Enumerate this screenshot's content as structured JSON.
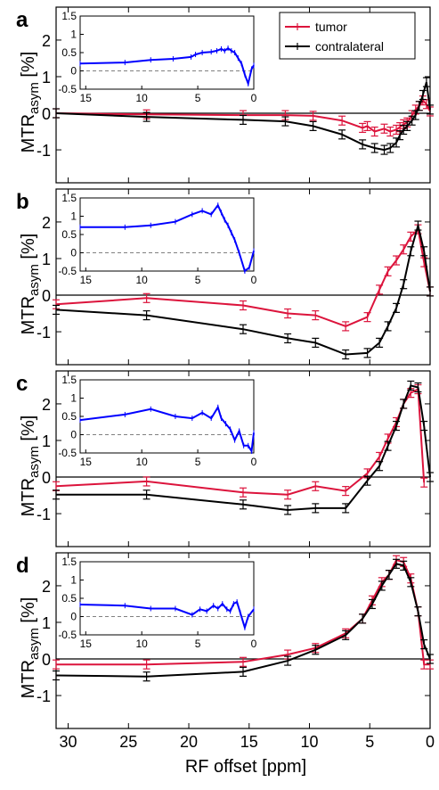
{
  "figure": {
    "xlabel": "RF offset [ppm]",
    "ylabel_main": "MTR",
    "ylabel_sub": "asym",
    "ylabel_unit": " [%]",
    "xticks": [
      "30",
      "25",
      "20",
      "15",
      "10",
      "5",
      "0"
    ],
    "legend": {
      "position": "top-right",
      "entries": [
        "tumor",
        "contralateral"
      ]
    },
    "colors": {
      "tumor": "#dc143c",
      "contralateral": "#000000",
      "inset": "#0000ff",
      "zero_line": "#000000",
      "inset_zero": "#808080"
    }
  },
  "chart_data": [
    {
      "panel": "a",
      "type": "line",
      "x_reversed": true,
      "xlim": [
        31,
        0
      ],
      "ylim": [
        -1.9,
        2.9
      ],
      "yticks": [
        "-1",
        "0",
        "1",
        "2"
      ],
      "series": [
        {
          "name": "tumor",
          "x": [
            31,
            23.5,
            15.5,
            12,
            9.7,
            7.3,
            5.6,
            5.2,
            4.6,
            3.8,
            3.3,
            2.8,
            2.5,
            2.2,
            1.9,
            1.5,
            1.2,
            0.9,
            0.6,
            0.3,
            0
          ],
          "y": [
            0,
            -0.03,
            -0.05,
            -0.05,
            -0.07,
            -0.2,
            -0.4,
            -0.35,
            -0.5,
            -0.42,
            -0.5,
            -0.45,
            -0.38,
            -0.3,
            -0.25,
            -0.05,
            0.1,
            0.2,
            0.35,
            0.25,
            0.05
          ]
        },
        {
          "name": "contralateral",
          "x": [
            31,
            23.5,
            15.5,
            12,
            9.7,
            7.3,
            5.6,
            4.6,
            3.8,
            3.3,
            2.8,
            2.5,
            2.2,
            1.9,
            1.5,
            1.2,
            0.9,
            0.6,
            0.3,
            0
          ],
          "y": [
            0,
            -0.1,
            -0.18,
            -0.22,
            -0.35,
            -0.58,
            -0.85,
            -0.95,
            -1.0,
            -0.95,
            -0.8,
            -0.6,
            -0.45,
            -0.35,
            -0.2,
            -0.05,
            0.2,
            0.5,
            0.85,
            0.1
          ]
        }
      ],
      "inset": {
        "xlim": [
          15.5,
          0
        ],
        "ylim": [
          -0.5,
          1.5
        ],
        "xticks": [
          "15",
          "10",
          "5",
          "0"
        ],
        "yticks": [
          "-0.5",
          "0",
          "0.5",
          "1",
          "1.5"
        ],
        "x": [
          15.5,
          11.5,
          9.2,
          7.2,
          5.6,
          5.2,
          4.6,
          3.8,
          3.3,
          2.9,
          2.6,
          2.3,
          2.0,
          1.7,
          1.4,
          1.1,
          0.8,
          0.5,
          0.2,
          0
        ],
        "y": [
          0.2,
          0.23,
          0.3,
          0.33,
          0.38,
          0.45,
          0.5,
          0.52,
          0.55,
          0.6,
          0.55,
          0.62,
          0.55,
          0.5,
          0.35,
          0.2,
          -0.1,
          -0.35,
          0.05,
          0.15
        ]
      }
    },
    {
      "panel": "b",
      "type": "line",
      "x_reversed": true,
      "xlim": [
        31,
        0
      ],
      "ylim": [
        -1.9,
        2.9
      ],
      "yticks": [
        "-1",
        "0",
        "1",
        "2"
      ],
      "series": [
        {
          "name": "tumor",
          "x": [
            31,
            23.5,
            15.5,
            11.8,
            9.5,
            7.0,
            5.2,
            4.2,
            3.5,
            2.8,
            2.2,
            1.6,
            1.0,
            0.5,
            0
          ],
          "y": [
            -0.25,
            -0.08,
            -0.28,
            -0.5,
            -0.55,
            -0.85,
            -0.6,
            0.15,
            0.65,
            0.95,
            1.25,
            1.6,
            1.8,
            0.9,
            0.1
          ]
        },
        {
          "name": "contralateral",
          "x": [
            31,
            23.5,
            15.5,
            11.8,
            9.5,
            7.0,
            5.2,
            4.2,
            3.5,
            2.8,
            2.2,
            1.6,
            1.0,
            0.5,
            0
          ],
          "y": [
            -0.4,
            -0.55,
            -0.93,
            -1.18,
            -1.3,
            -1.62,
            -1.58,
            -1.3,
            -0.85,
            -0.35,
            0.3,
            1.2,
            1.9,
            1.2,
            0.1
          ]
        }
      ],
      "inset": {
        "xlim": [
          15.5,
          0
        ],
        "ylim": [
          -0.5,
          1.5
        ],
        "xticks": [
          "15",
          "10",
          "5",
          "0"
        ],
        "yticks": [
          "-0.5",
          "0",
          "0.5",
          "1",
          "1.5"
        ],
        "x": [
          15.5,
          11.5,
          9.2,
          7.0,
          5.5,
          4.6,
          3.8,
          3.2,
          2.9,
          2.6,
          2.3,
          2.0,
          1.7,
          1.3,
          0.8,
          0.4,
          0
        ],
        "y": [
          0.7,
          0.7,
          0.75,
          0.85,
          1.05,
          1.15,
          1.05,
          1.3,
          1.1,
          0.9,
          0.75,
          0.55,
          0.35,
          0.0,
          -0.5,
          -0.4,
          0.05
        ]
      }
    },
    {
      "panel": "c",
      "type": "line",
      "x_reversed": true,
      "xlim": [
        31,
        0
      ],
      "ylim": [
        -1.9,
        2.9
      ],
      "yticks": [
        "-1",
        "0",
        "1",
        "2"
      ],
      "series": [
        {
          "name": "tumor",
          "x": [
            31,
            23.5,
            15.5,
            11.8,
            9.5,
            7.0,
            5.2,
            4.2,
            3.5,
            2.8,
            2.2,
            1.6,
            1.0,
            0.5
          ],
          "y": [
            -0.25,
            -0.12,
            -0.42,
            -0.48,
            -0.25,
            -0.38,
            0.1,
            0.55,
            1.05,
            1.5,
            2.0,
            2.3,
            2.4,
            -0.15
          ]
        },
        {
          "name": "contralateral",
          "x": [
            31,
            23.5,
            15.5,
            11.8,
            9.5,
            7.0,
            5.2,
            4.2,
            3.5,
            2.8,
            2.2,
            1.6,
            1.0,
            0.5,
            0
          ],
          "y": [
            -0.48,
            -0.48,
            -0.75,
            -0.9,
            -0.85,
            -0.85,
            -0.1,
            0.3,
            0.85,
            1.4,
            2.0,
            2.5,
            2.45,
            1.4,
            0.0
          ]
        }
      ],
      "inset": {
        "xlim": [
          15.5,
          0
        ],
        "ylim": [
          -0.5,
          1.5
        ],
        "xticks": [
          "15",
          "10",
          "5",
          "0"
        ],
        "yticks": [
          "-0.5",
          "0",
          "0.5",
          "1",
          "1.5"
        ],
        "x": [
          15.5,
          11.5,
          9.2,
          7.0,
          5.5,
          4.6,
          3.8,
          3.2,
          2.9,
          2.5,
          2.1,
          1.7,
          1.3,
          0.9,
          0.5,
          0.2,
          0
        ],
        "y": [
          0.4,
          0.55,
          0.7,
          0.5,
          0.45,
          0.6,
          0.45,
          0.75,
          0.45,
          0.3,
          0.15,
          -0.15,
          0.1,
          -0.3,
          -0.3,
          -0.45,
          0.05
        ]
      }
    },
    {
      "panel": "d",
      "type": "line",
      "x_reversed": true,
      "xlim": [
        31,
        0
      ],
      "ylim": [
        -1.9,
        2.9
      ],
      "yticks": [
        "-1",
        "0",
        "1",
        "2"
      ],
      "series": [
        {
          "name": "tumor",
          "x": [
            31,
            23.5,
            15.5,
            11.8,
            9.5,
            7.0,
            5.6,
            4.8,
            4.0,
            3.4,
            2.8,
            2.2,
            1.6,
            1.0,
            0.5,
            0
          ],
          "y": [
            -0.15,
            -0.15,
            -0.08,
            0.12,
            0.3,
            0.7,
            1.1,
            1.6,
            2.1,
            2.3,
            2.7,
            2.65,
            2.2,
            1.3,
            -0.15,
            -0.15
          ]
        },
        {
          "name": "contralateral",
          "x": [
            31,
            23.5,
            15.5,
            11.8,
            9.5,
            7.0,
            5.6,
            4.8,
            4.0,
            3.4,
            2.8,
            2.2,
            1.6,
            1.0,
            0.5,
            0
          ],
          "y": [
            -0.45,
            -0.48,
            -0.35,
            -0.05,
            0.25,
            0.65,
            1.1,
            1.5,
            2.0,
            2.3,
            2.6,
            2.55,
            2.1,
            1.3,
            0.4,
            0.0
          ]
        }
      ],
      "inset": {
        "xlim": [
          15.5,
          0
        ],
        "ylim": [
          -0.5,
          1.5
        ],
        "xticks": [
          "15",
          "10",
          "5",
          "0"
        ],
        "yticks": [
          "-0.5",
          "0",
          "0.5",
          "1",
          "1.5"
        ],
        "x": [
          15.5,
          11.5,
          9.2,
          7.0,
          5.5,
          4.8,
          4.2,
          3.6,
          3.2,
          2.8,
          2.4,
          2.1,
          1.8,
          1.5,
          1.2,
          0.8,
          0.5,
          0
        ],
        "y": [
          0.33,
          0.3,
          0.22,
          0.22,
          0.05,
          0.2,
          0.15,
          0.3,
          0.22,
          0.35,
          0.2,
          0.15,
          0.35,
          0.4,
          0.1,
          -0.3,
          0.0,
          0.2
        ]
      }
    }
  ]
}
